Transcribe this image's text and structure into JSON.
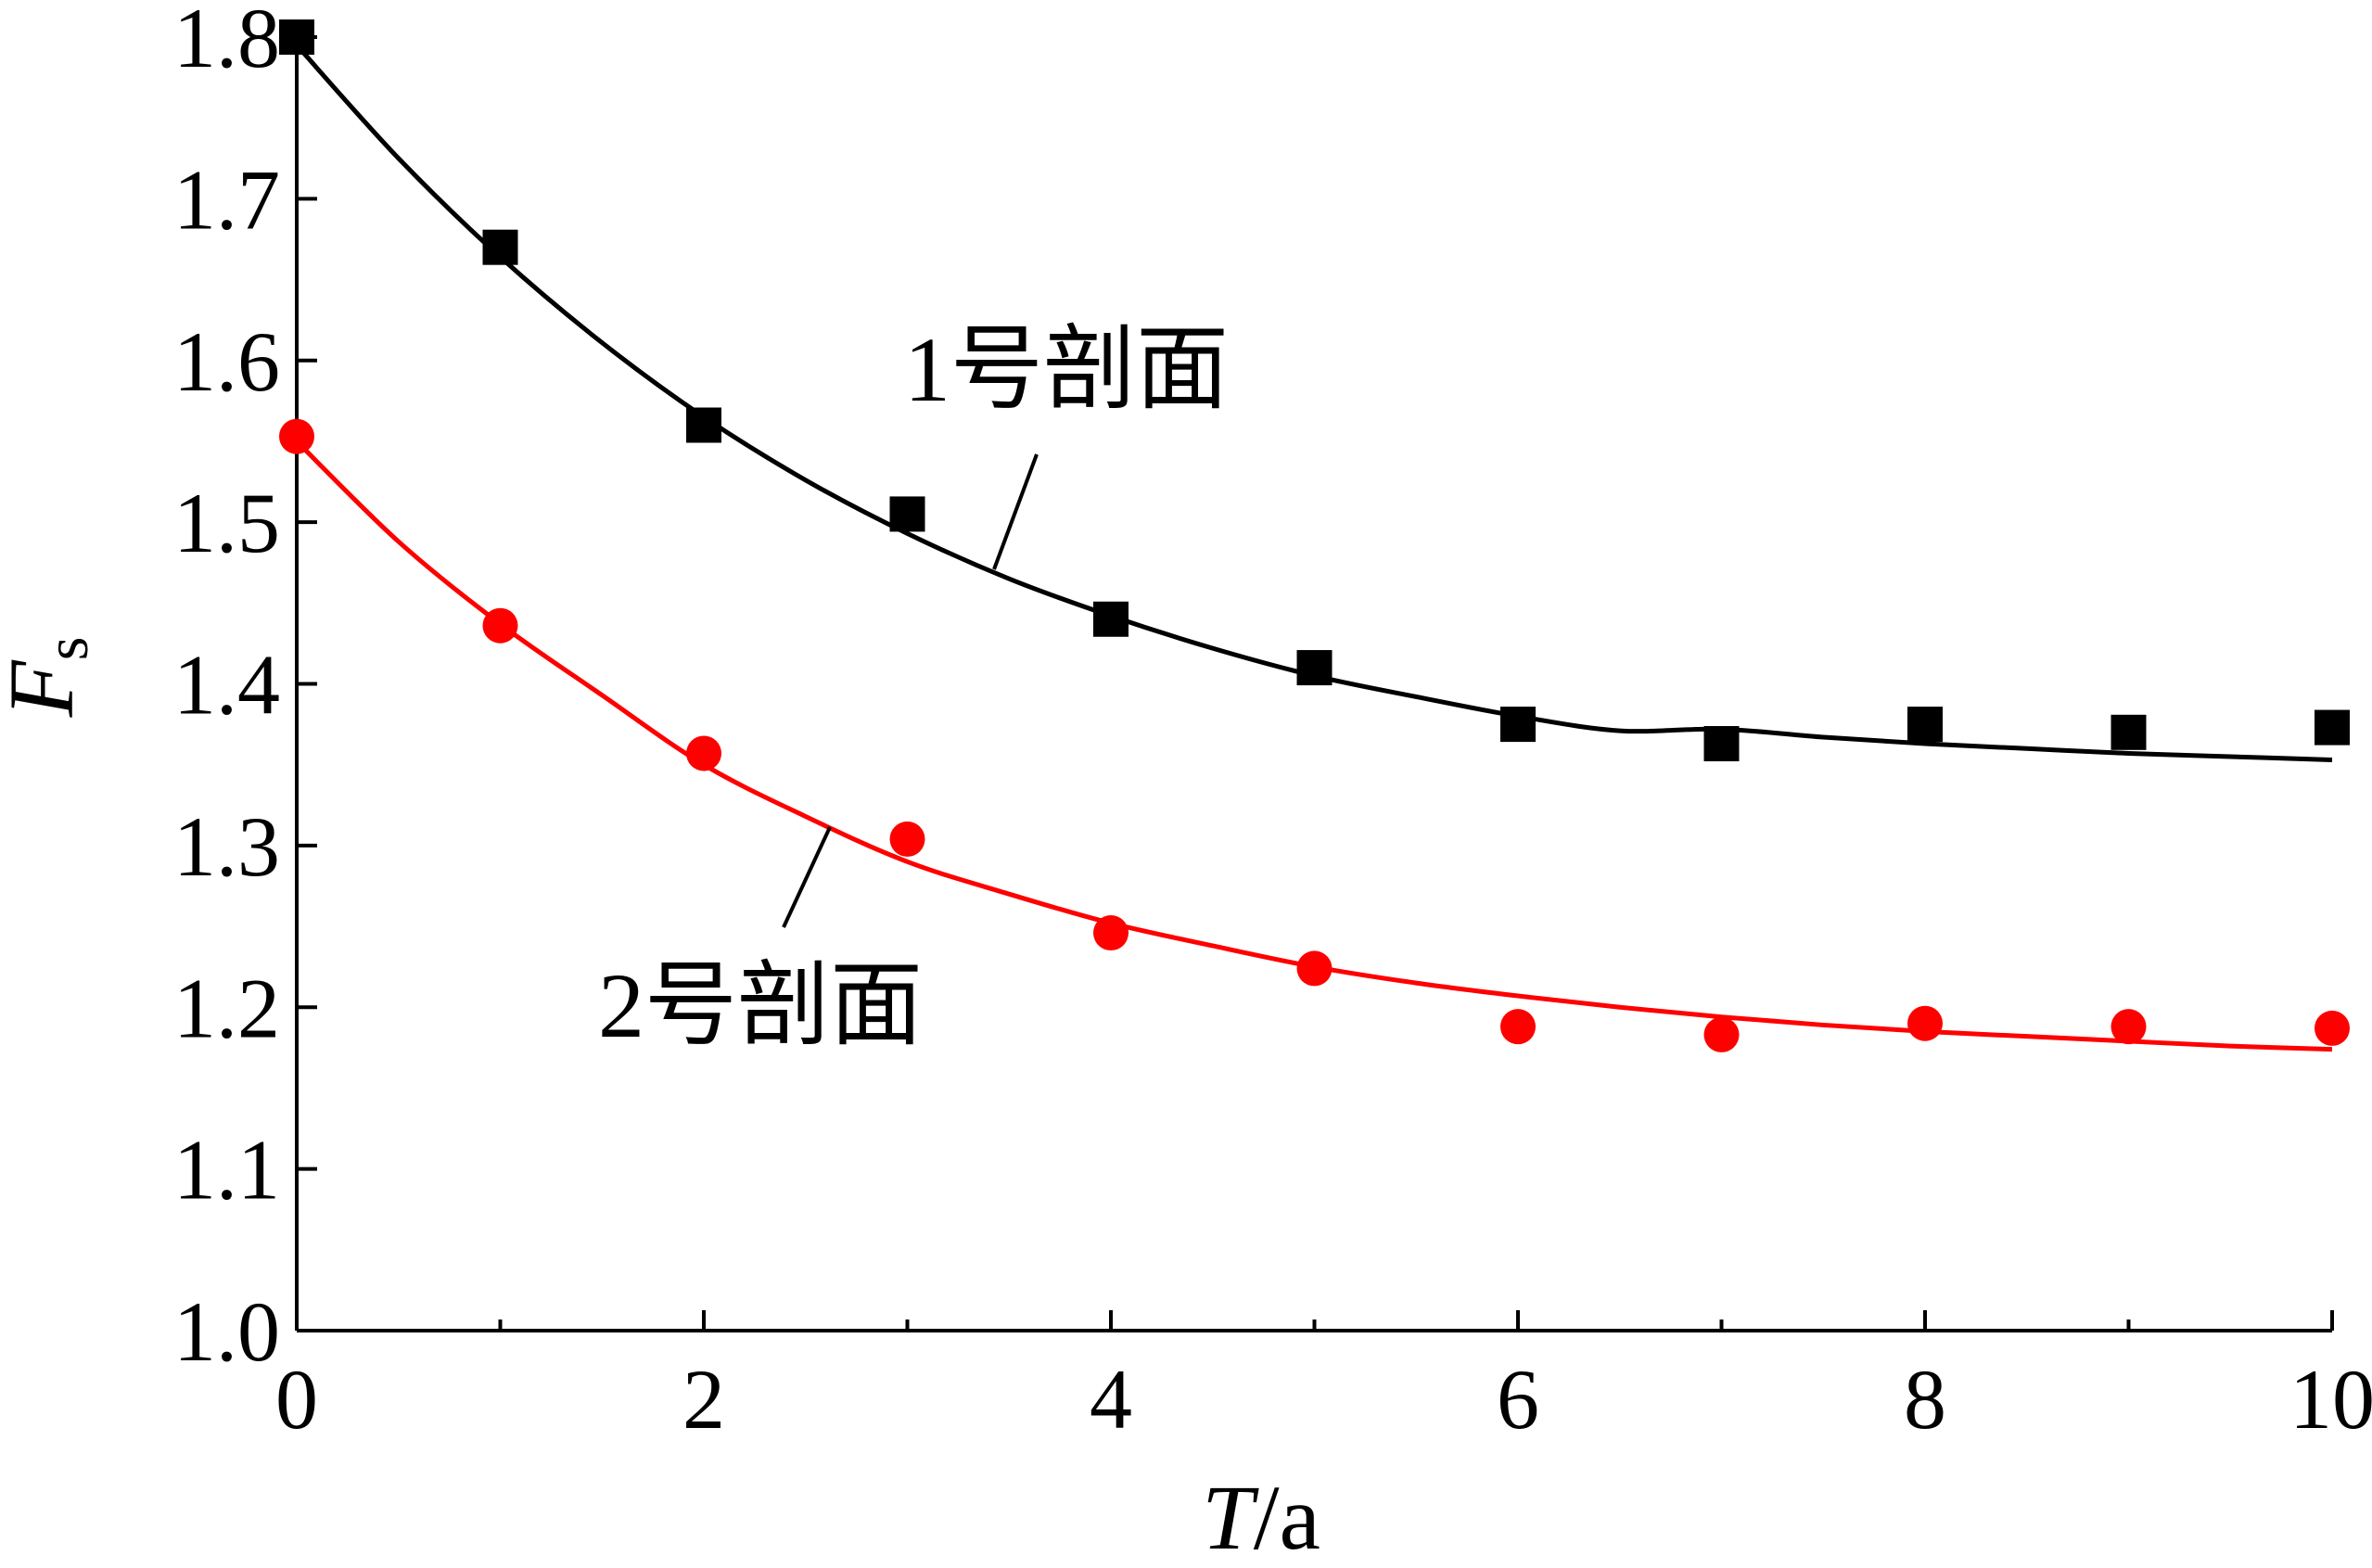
{
  "chart_data": {
    "type": "scatter",
    "xlabel": {
      "main": "T",
      "unit": "/a"
    },
    "ylabel": {
      "main": "F",
      "sub": "s"
    },
    "xlim": [
      0,
      10
    ],
    "ylim": [
      1.0,
      1.8
    ],
    "x_ticks": [
      "0",
      "2",
      "4",
      "6",
      "8",
      "10"
    ],
    "x_tick_values": [
      0,
      2,
      4,
      6,
      8,
      10
    ],
    "y_ticks": [
      "1.0",
      "1.1",
      "1.2",
      "1.3",
      "1.4",
      "1.5",
      "1.6",
      "1.7",
      "1.8"
    ],
    "y_tick_values": [
      1.0,
      1.1,
      1.2,
      1.3,
      1.4,
      1.5,
      1.6,
      1.7,
      1.8
    ],
    "grid": false,
    "legend": "none",
    "series": [
      {
        "name": "1号剖面",
        "color": "#000000",
        "marker": "square",
        "x": [
          0,
          1,
          2,
          3,
          4,
          5,
          6,
          7,
          8,
          9,
          10
        ],
        "y": [
          1.8,
          1.67,
          1.56,
          1.505,
          1.44,
          1.41,
          1.375,
          1.363,
          1.375,
          1.37,
          1.373
        ],
        "fit_x": [
          0,
          0.5,
          1,
          1.5,
          2,
          2.5,
          3,
          3.5,
          4,
          4.5,
          5,
          5.5,
          6,
          6.5,
          7,
          7.5,
          8,
          8.5,
          9,
          9.5,
          10
        ],
        "fit_y": [
          1.795,
          1.725,
          1.664,
          1.611,
          1.565,
          1.526,
          1.493,
          1.465,
          1.442,
          1.422,
          1.405,
          1.392,
          1.38,
          1.371,
          1.372,
          1.367,
          1.363,
          1.36,
          1.357,
          1.355,
          1.353
        ]
      },
      {
        "name": "2号剖面",
        "color": "#ff0000",
        "marker": "circle",
        "x": [
          0,
          1,
          2,
          3,
          4,
          5,
          6,
          7,
          8,
          9,
          10
        ],
        "y": [
          1.553,
          1.436,
          1.357,
          1.304,
          1.246,
          1.224,
          1.188,
          1.183,
          1.19,
          1.188,
          1.187
        ],
        "fit_x": [
          0,
          0.5,
          1,
          1.5,
          2,
          2.5,
          3,
          3.5,
          4,
          4.5,
          5,
          5.5,
          6,
          6.5,
          7,
          7.5,
          8,
          8.5,
          9,
          9.5,
          10
        ],
        "fit_y": [
          1.55,
          1.488,
          1.437,
          1.393,
          1.35,
          1.318,
          1.29,
          1.27,
          1.252,
          1.238,
          1.225,
          1.215,
          1.207,
          1.2,
          1.194,
          1.189,
          1.185,
          1.182,
          1.179,
          1.176,
          1.174
        ]
      }
    ]
  }
}
